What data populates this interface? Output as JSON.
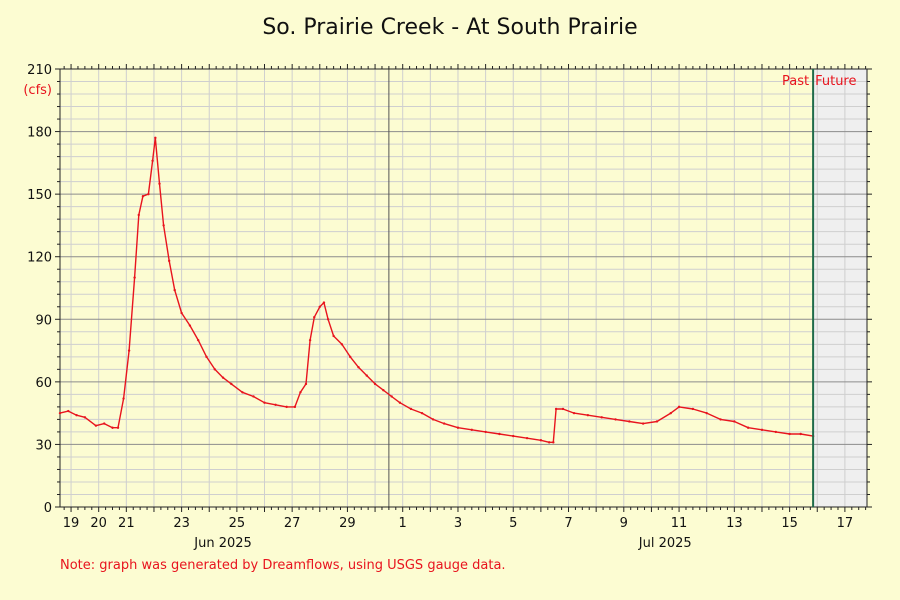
{
  "chart_data": {
    "type": "line",
    "title": "So. Prairie Creek - At South Prairie",
    "ylabel": "(cfs)",
    "ylim": [
      0,
      210
    ],
    "yticks": [
      0,
      30,
      60,
      90,
      120,
      150,
      180,
      210
    ],
    "xlim": [
      18.6,
      47.8
    ],
    "xaxis": {
      "day_ticks": [
        {
          "x": 19,
          "label": "19"
        },
        {
          "x": 20,
          "label": "20"
        },
        {
          "x": 21,
          "label": "21"
        },
        {
          "x": 23,
          "label": "23"
        },
        {
          "x": 25,
          "label": "25"
        },
        {
          "x": 27,
          "label": "27"
        },
        {
          "x": 29,
          "label": "29"
        },
        {
          "x": 31,
          "label": "1"
        },
        {
          "x": 33,
          "label": "3"
        },
        {
          "x": 35,
          "label": "5"
        },
        {
          "x": 37,
          "label": "7"
        },
        {
          "x": 39,
          "label": "9"
        },
        {
          "x": 41,
          "label": "11"
        },
        {
          "x": 43,
          "label": "13"
        },
        {
          "x": 45,
          "label": "15"
        },
        {
          "x": 47,
          "label": "17"
        }
      ],
      "month_labels": [
        {
          "x": 24.5,
          "label": "Jun 2025"
        },
        {
          "x": 40.5,
          "label": "Jul 2025"
        }
      ],
      "month_boundary": 30.5
    },
    "now_x": 45.85,
    "past_label": "Past",
    "future_label": "Future",
    "grid": true,
    "series": [
      {
        "color": "#e8141e",
        "points": [
          [
            18.6,
            45
          ],
          [
            18.9,
            46
          ],
          [
            19.2,
            44
          ],
          [
            19.5,
            43
          ],
          [
            19.9,
            39
          ],
          [
            20.2,
            40
          ],
          [
            20.5,
            38
          ],
          [
            20.7,
            38
          ],
          [
            20.9,
            52
          ],
          [
            21.1,
            75
          ],
          [
            21.3,
            110
          ],
          [
            21.45,
            140
          ],
          [
            21.6,
            149
          ],
          [
            21.8,
            150
          ],
          [
            21.95,
            166
          ],
          [
            22.05,
            177
          ],
          [
            22.2,
            155
          ],
          [
            22.35,
            135
          ],
          [
            22.55,
            118
          ],
          [
            22.75,
            104
          ],
          [
            23.0,
            93
          ],
          [
            23.3,
            87
          ],
          [
            23.6,
            80
          ],
          [
            23.9,
            72
          ],
          [
            24.2,
            66
          ],
          [
            24.5,
            62
          ],
          [
            24.8,
            59
          ],
          [
            25.2,
            55
          ],
          [
            25.6,
            53
          ],
          [
            26.0,
            50
          ],
          [
            26.4,
            49
          ],
          [
            26.8,
            48
          ],
          [
            27.1,
            48
          ],
          [
            27.3,
            55
          ],
          [
            27.5,
            59
          ],
          [
            27.65,
            80
          ],
          [
            27.8,
            91
          ],
          [
            28.0,
            96
          ],
          [
            28.15,
            98
          ],
          [
            28.3,
            90
          ],
          [
            28.5,
            82
          ],
          [
            28.8,
            78
          ],
          [
            29.1,
            72
          ],
          [
            29.4,
            67
          ],
          [
            29.7,
            63
          ],
          [
            30.0,
            59
          ],
          [
            30.3,
            56
          ],
          [
            30.6,
            53
          ],
          [
            30.9,
            50
          ],
          [
            31.3,
            47
          ],
          [
            31.7,
            45
          ],
          [
            32.1,
            42
          ],
          [
            32.5,
            40
          ],
          [
            33.0,
            38
          ],
          [
            33.5,
            37
          ],
          [
            34.0,
            36
          ],
          [
            34.5,
            35
          ],
          [
            35.0,
            34
          ],
          [
            35.5,
            33
          ],
          [
            36.0,
            32
          ],
          [
            36.3,
            31
          ],
          [
            36.45,
            31
          ],
          [
            36.55,
            47
          ],
          [
            36.8,
            47
          ],
          [
            37.2,
            45
          ],
          [
            37.7,
            44
          ],
          [
            38.2,
            43
          ],
          [
            38.7,
            42
          ],
          [
            39.2,
            41
          ],
          [
            39.7,
            40
          ],
          [
            40.2,
            41
          ],
          [
            40.7,
            45
          ],
          [
            41.0,
            48
          ],
          [
            41.5,
            47
          ],
          [
            42.0,
            45
          ],
          [
            42.5,
            42
          ],
          [
            43.0,
            41
          ],
          [
            43.5,
            38
          ],
          [
            44.0,
            37
          ],
          [
            44.5,
            36
          ],
          [
            45.0,
            35
          ],
          [
            45.4,
            35
          ],
          [
            45.85,
            34
          ]
        ]
      }
    ]
  },
  "note": "Note: graph was generated by Dreamflows, using USGS gauge data."
}
